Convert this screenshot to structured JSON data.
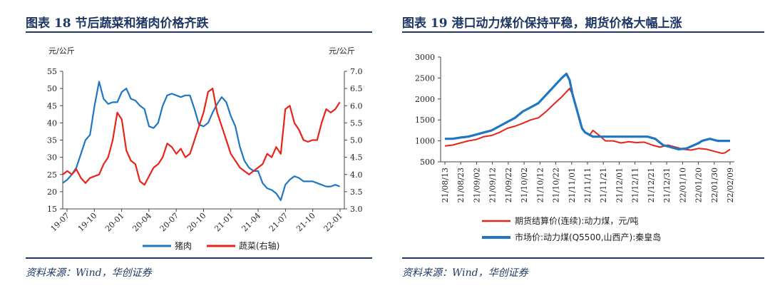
{
  "chart_data": [
    {
      "type": "line",
      "title": "图表 18   节后蔬菜和猪肉价格齐跌",
      "ylabel_left": "元/公斤",
      "ylabel_right": "元/公斤",
      "ylim_left": [
        15,
        55
      ],
      "ylim_right": [
        3.0,
        7.0
      ],
      "yticks_left": [
        "15",
        "20",
        "25",
        "30",
        "35",
        "40",
        "45",
        "50",
        "55"
      ],
      "yticks_right": [
        "3.0",
        "3.5",
        "4.0",
        "4.5",
        "5.0",
        "5.5",
        "6.0",
        "6.5",
        "7.0"
      ],
      "xticks": [
        "19-07",
        "19-10",
        "20-01",
        "20-04",
        "20-07",
        "20-10",
        "21-01",
        "21-04",
        "21-07",
        "21-10",
        "22-01"
      ],
      "x_range": [
        0,
        31
      ],
      "grid": false,
      "legend_position": "bottom",
      "series": [
        {
          "name": "猪肉",
          "axis": "left",
          "color": "#1f77c4",
          "x": [
            0,
            0.5,
            1,
            1.5,
            2,
            2.5,
            3,
            3.5,
            4,
            4.5,
            5,
            5.5,
            6,
            6.5,
            7,
            7.5,
            8,
            8.5,
            9,
            9.5,
            10,
            10.5,
            11,
            11.5,
            12,
            12.5,
            13,
            13.5,
            14,
            14.5,
            15,
            15.5,
            16,
            16.5,
            17,
            17.5,
            18,
            18.5,
            19,
            19.5,
            20,
            20.5,
            21,
            21.5,
            22,
            22.5,
            23,
            23.5,
            24,
            24.5,
            25,
            25.5,
            26,
            26.5,
            27,
            27.5,
            28,
            28.5,
            29,
            29.5,
            30,
            30.5
          ],
          "values": [
            22.5,
            23.5,
            25,
            27,
            31,
            35,
            36.5,
            45,
            52,
            47,
            45.5,
            46,
            46,
            49,
            50,
            47,
            46.5,
            45,
            44,
            39,
            38.5,
            40,
            45,
            48,
            48.5,
            48,
            47.5,
            48,
            48,
            44,
            39.5,
            39,
            40,
            43,
            45.5,
            47.5,
            46,
            42,
            39,
            33,
            29,
            27,
            26,
            26,
            22.5,
            21,
            20.5,
            19.5,
            17.5,
            22,
            23.5,
            24.5,
            24,
            23,
            23,
            23,
            22.5,
            22,
            21.5,
            21.5,
            22,
            21.5
          ]
        },
        {
          "name": "蔬菜(右轴)",
          "axis": "right",
          "color": "#e8231a",
          "x": [
            0,
            0.5,
            1,
            1.5,
            2,
            2.5,
            3,
            3.5,
            4,
            4.5,
            5,
            5.5,
            6,
            6.5,
            7,
            7.5,
            8,
            8.5,
            9,
            9.5,
            10,
            10.5,
            11,
            11.5,
            12,
            12.5,
            13,
            13.5,
            14,
            14.5,
            15,
            15.5,
            16,
            16.5,
            17,
            17.5,
            18,
            18.5,
            19,
            19.5,
            20,
            20.5,
            21,
            21.5,
            22,
            22.5,
            23,
            23.5,
            24,
            24.5,
            25,
            25.5,
            26,
            26.5,
            27,
            27.5,
            28,
            28.5,
            29,
            29.5,
            30,
            30.5
          ],
          "values": [
            4.0,
            4.1,
            4.0,
            4.15,
            3.9,
            3.75,
            3.9,
            3.95,
            4.0,
            4.3,
            4.5,
            5.0,
            5.8,
            5.6,
            4.7,
            4.4,
            4.3,
            3.8,
            3.7,
            3.95,
            4.2,
            4.3,
            4.5,
            4.9,
            4.8,
            4.6,
            4.75,
            4.5,
            4.6,
            5.0,
            5.4,
            5.8,
            6.4,
            6.5,
            5.8,
            5.4,
            5.0,
            4.6,
            4.4,
            4.2,
            4.1,
            4.0,
            4.1,
            4.2,
            4.3,
            4.6,
            4.5,
            4.8,
            4.6,
            5.9,
            6.0,
            5.5,
            5.3,
            5.0,
            4.95,
            5.0,
            5.0,
            5.5,
            5.9,
            5.8,
            5.9,
            6.1
          ]
        }
      ]
    },
    {
      "type": "line",
      "title": "图表 19   港口动力煤价保持平稳，期货价格大幅上涨",
      "ylim": [
        500,
        3000
      ],
      "yticks": [
        "500",
        "1000",
        "1500",
        "2000",
        "2500",
        "3000"
      ],
      "xticks": [
        "21/08/13",
        "21/08/23",
        "21/09/02",
        "21/09/12",
        "21/09/22",
        "21/10/02",
        "21/10/12",
        "21/10/22",
        "21/11/01",
        "21/11/11",
        "21/11/21",
        "21/12/01",
        "21/12/11",
        "21/12/21",
        "21/12/31",
        "22/01/10",
        "22/01/20",
        "22/01/30",
        "22/02/09"
      ],
      "x_range": [
        0,
        183
      ],
      "grid": false,
      "legend_position": "bottom",
      "series": [
        {
          "name": "期货结算价(连续):动力煤，元/吨",
          "color": "#e8231a",
          "x": [
            0,
            5,
            10,
            15,
            20,
            25,
            30,
            35,
            40,
            45,
            50,
            55,
            60,
            65,
            70,
            75,
            80,
            82,
            85,
            88,
            90,
            93,
            95,
            100,
            103,
            108,
            113,
            118,
            123,
            128,
            133,
            138,
            143,
            148,
            153,
            158,
            163,
            168,
            173,
            178,
            180,
            183
          ],
          "values": [
            880,
            900,
            950,
            1000,
            1030,
            1100,
            1130,
            1200,
            1300,
            1350,
            1420,
            1500,
            1550,
            1700,
            1880,
            2050,
            2250,
            2100,
            1700,
            1300,
            1200,
            1150,
            1250,
            1100,
            1000,
            1000,
            950,
            980,
            960,
            970,
            900,
            850,
            900,
            850,
            800,
            780,
            820,
            800,
            750,
            700,
            720,
            800
          ]
        },
        {
          "name": "市场价:动力煤(Q5500,山西产):秦皇岛",
          "color": "#1f77c4",
          "x": [
            0,
            5,
            10,
            15,
            20,
            25,
            30,
            35,
            40,
            45,
            50,
            55,
            60,
            65,
            70,
            75,
            78,
            80,
            82,
            85,
            88,
            90,
            95,
            100,
            105,
            110,
            115,
            120,
            125,
            130,
            135,
            140,
            145,
            150,
            155,
            160,
            163,
            165,
            170,
            175,
            180,
            183
          ],
          "values": [
            1050,
            1050,
            1080,
            1100,
            1150,
            1200,
            1250,
            1350,
            1450,
            1550,
            1700,
            1800,
            1900,
            2100,
            2300,
            2500,
            2600,
            2450,
            2100,
            1700,
            1300,
            1200,
            1100,
            1100,
            1100,
            1100,
            1100,
            1100,
            1100,
            1100,
            1050,
            900,
            850,
            800,
            820,
            900,
            950,
            1000,
            1050,
            1000,
            1000,
            1000
          ]
        }
      ]
    }
  ],
  "panels": {
    "left": {
      "title": "图表 18   节后蔬菜和猪肉价格齐跌",
      "source": "资料来源：Wind，华创证券",
      "unit_left": "元/公斤",
      "unit_right": "元/公斤"
    },
    "right": {
      "title": "图表 19   港口动力煤价保持平稳，期货价格大幅上涨",
      "source": "资料来源：Wind，华创证券"
    }
  }
}
